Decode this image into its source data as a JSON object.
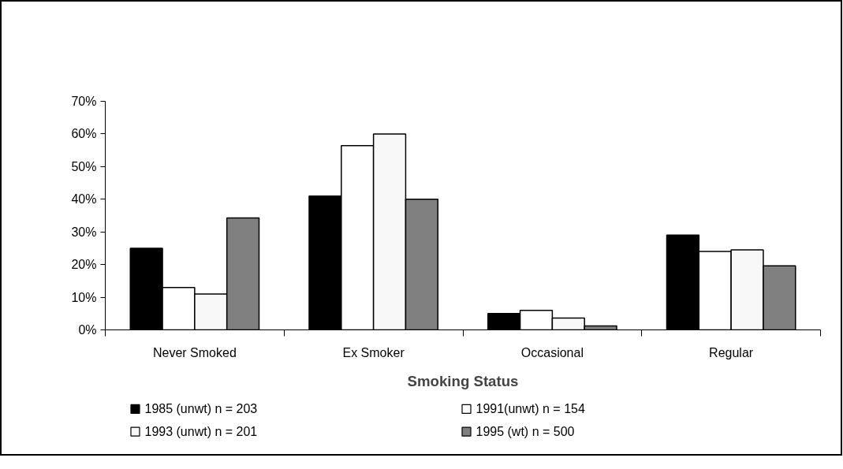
{
  "chart_data": {
    "type": "bar",
    "xlabel": "Smoking Status",
    "categories": [
      "Never Smoked",
      "Ex Smoker",
      "Occasional",
      "Regular"
    ],
    "series": [
      {
        "name": "1985 (unwt)   n = 203",
        "color": "#000000",
        "values": [
          25,
          41,
          5,
          29
        ]
      },
      {
        "name": "1991(unwt)  n = 154",
        "color": "#ffffff",
        "values": [
          13,
          56.4,
          6,
          24
        ]
      },
      {
        "name": "1993 (unwt)    n = 201",
        "color": "#f8f8f8",
        "values": [
          11,
          60,
          3.6,
          24.5
        ]
      },
      {
        "name": "1995 (wt)    n = 500",
        "color": "#808080",
        "values": [
          34.3,
          40,
          1.2,
          19.6
        ]
      }
    ],
    "ylim": [
      0,
      70
    ],
    "yticks": [
      {
        "value": 0,
        "label": "0%"
      },
      {
        "value": 10,
        "label": "10%"
      },
      {
        "value": 20,
        "label": "20%"
      },
      {
        "value": 30,
        "label": "30%"
      },
      {
        "value": 40,
        "label": "40%"
      },
      {
        "value": 50,
        "label": "50%"
      },
      {
        "value": 60,
        "label": "60%"
      },
      {
        "value": 70,
        "label": "70%"
      }
    ],
    "grid": false,
    "legend": "bottom"
  }
}
